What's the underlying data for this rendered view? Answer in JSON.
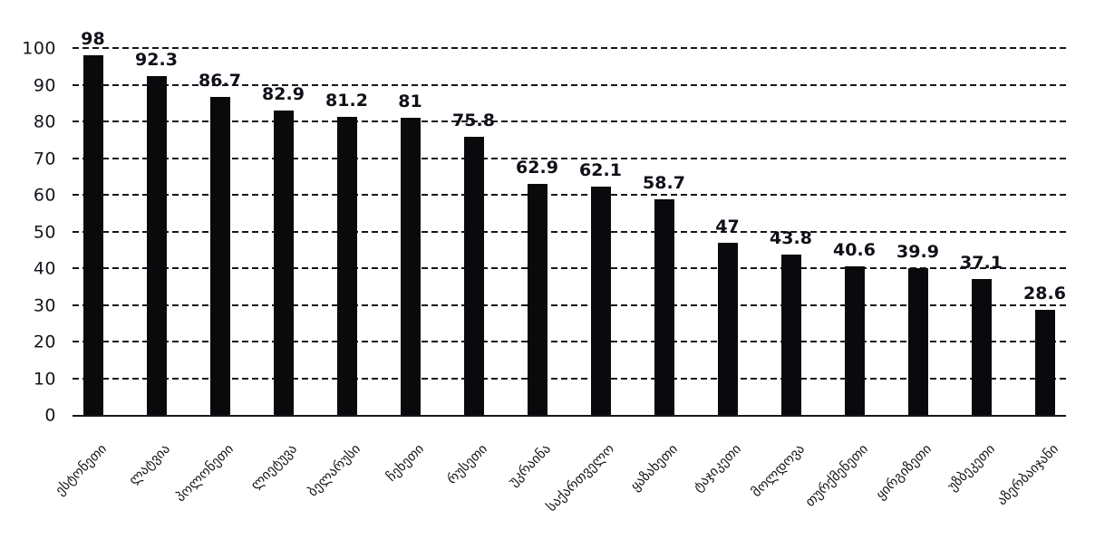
{
  "chart_data": {
    "type": "bar",
    "title": "",
    "xlabel": "",
    "ylabel": "",
    "categories": [
      "ესტონეთი",
      "ლატვია",
      "პოლონეთი",
      "ლიეტუვა",
      "ბელარუსი",
      "ჩეხეთი",
      "რუსეთი",
      "უკრაინა",
      "საქართველო",
      "ყაზახეთი",
      "ტაჯიკეთი",
      "მოლდოვა",
      "თურქმენეთი",
      "ყირგიზეთი",
      "უზბეკეთი",
      "აზერბაიჯანი"
    ],
    "values": [
      98,
      92.3,
      86.7,
      82.9,
      81.2,
      81,
      75.8,
      62.9,
      62.1,
      58.7,
      47,
      43.8,
      40.6,
      39.9,
      37.1,
      28.6
    ],
    "value_labels": [
      "98",
      "92.3",
      "86.7",
      "82.9",
      "81.2",
      "81",
      "75.8",
      "62.9",
      "62.1",
      "58.7",
      "47",
      "43.8",
      "40.6",
      "39.9",
      "37.1",
      "28.6"
    ],
    "y_ticks": [
      "0",
      "10",
      "20",
      "30",
      "40",
      "50",
      "60",
      "70",
      "80",
      "90",
      "100"
    ],
    "ylim": [
      0,
      100
    ],
    "grid": "horizontal-dashed",
    "legend": "none",
    "bar_color": "#0a0a0c",
    "text_color": "#15151c"
  }
}
